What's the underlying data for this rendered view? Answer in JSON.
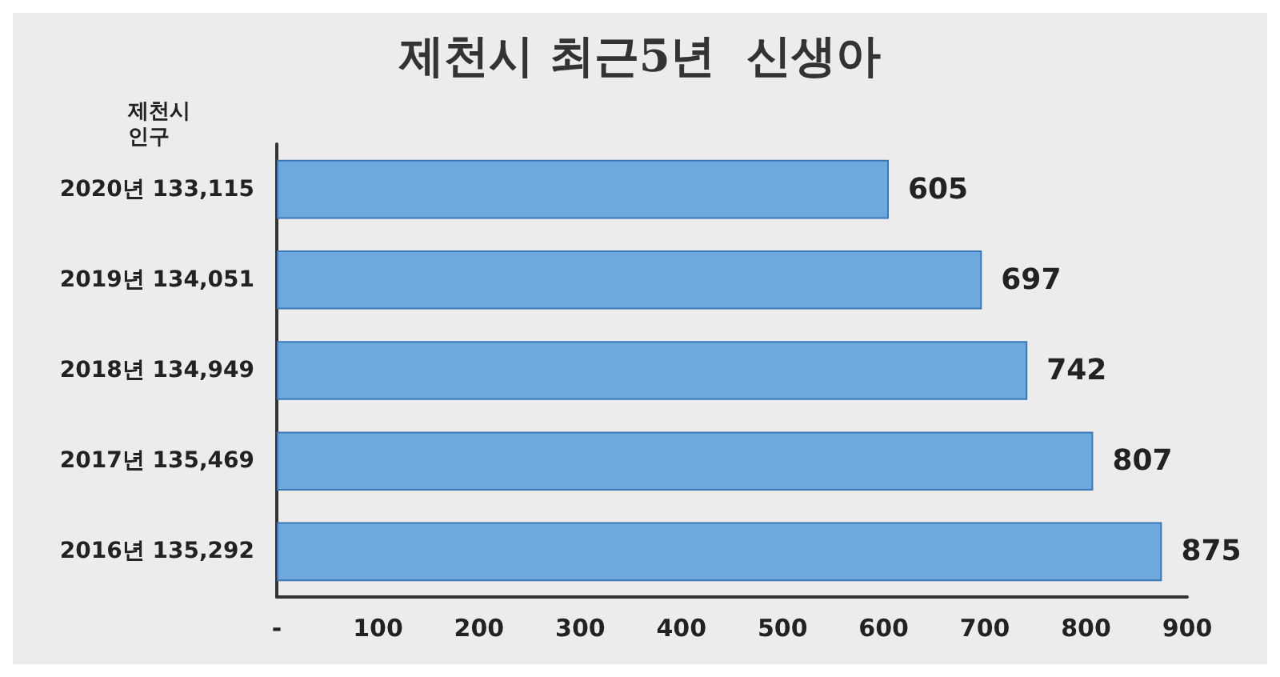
{
  "chart_data": {
    "type": "bar",
    "orientation": "horizontal",
    "title": "제천시 최근5년  신생아",
    "ylabel": "제천시 인구",
    "categories": [
      "2020년 133,115",
      "2019년 134,051",
      "2018년 134,949",
      "2017년 135,469",
      "2016년 135,292"
    ],
    "values": [
      605,
      697,
      742,
      807,
      875
    ],
    "color": "#6fa8dc",
    "data_labels": true,
    "xlim": [
      0,
      900
    ],
    "xticks": [
      {
        "value": 0,
        "label": "-"
      },
      100,
      200,
      300,
      400,
      500,
      600,
      700,
      800,
      900
    ]
  }
}
